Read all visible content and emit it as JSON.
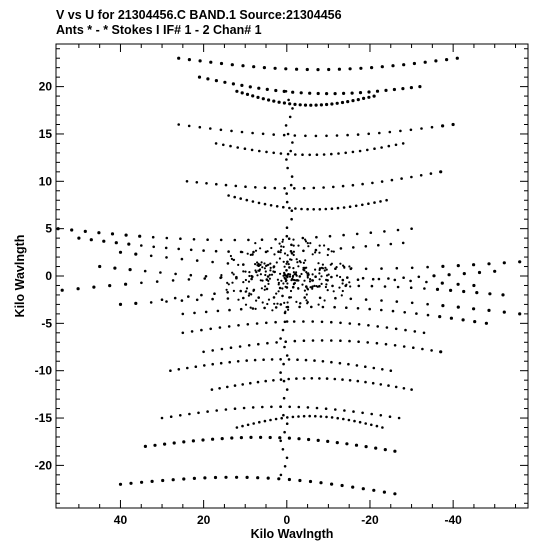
{
  "title_line1": "V vs U for 21304456.C BAND.1   Source:21304456",
  "title_line2": "Ants * - *    Stokes I  IF# 1 - 2  Chan# 1",
  "chart_data": {
    "type": "scatter",
    "title": "V vs U for 21304456.C BAND.1   Source:21304456",
    "subtitle": "Ants * - *    Stokes I  IF# 1 - 2  Chan# 1",
    "xlabel": "Kilo Wavlngth",
    "ylabel": "Kilo Wavlngth",
    "xlim": [
      55.5,
      -58
    ],
    "ylim": [
      -24.5,
      24.5
    ],
    "x_axis_reversed": true,
    "x_ticks": [
      40,
      20,
      0,
      -20,
      -40
    ],
    "x_tick_labels": [
      "40",
      "20",
      "0",
      "-20",
      "-40"
    ],
    "y_ticks": [
      20,
      15,
      10,
      5,
      0,
      -5,
      -10,
      -15,
      -20
    ],
    "y_tick_labels": [
      "20",
      "15",
      "10",
      "5",
      "0",
      "-5",
      "-10",
      "-15",
      "-20"
    ],
    "grid": false,
    "legend": "none",
    "marker_color": "#000000",
    "series": [
      {
        "tracks": [
          {
            "from": [
              26,
              23
            ],
            "to": [
              -41,
              23
            ]
          },
          {
            "from": [
              21,
              21
            ],
            "to": [
              -32,
              20
            ]
          },
          {
            "from": [
              12,
              19.5
            ],
            "to": [
              -21,
              19
            ]
          },
          {
            "from": [
              26,
              16
            ],
            "to": [
              -40,
              16
            ]
          },
          {
            "from": [
              17,
              14
            ],
            "to": [
              -28,
              14
            ]
          },
          {
            "from": [
              24,
              10
            ],
            "to": [
              -37,
              11
            ]
          },
          {
            "from": [
              14,
              8.5
            ],
            "to": [
              -24,
              8
            ]
          },
          {
            "from": [
              55,
              5
            ],
            "to": [
              -30,
              5
            ]
          },
          {
            "from": [
              50,
              4
            ],
            "to": [
              -28,
              3.5
            ]
          },
          {
            "from": [
              40,
              2.5
            ],
            "to": [
              -56,
              1.5
            ]
          },
          {
            "from": [
              45,
              1
            ],
            "to": [
              -50,
              0.5
            ]
          },
          {
            "from": [
              54,
              -1.5
            ],
            "to": [
              -45,
              -1
            ]
          },
          {
            "from": [
              30,
              -2.5
            ],
            "to": [
              -52,
              -2
            ]
          },
          {
            "from": [
              40,
              -3
            ],
            "to": [
              -56,
              -4
            ]
          },
          {
            "from": [
              25,
              -4
            ],
            "to": [
              -48,
              -5
            ]
          },
          {
            "from": [
              25,
              -6
            ],
            "to": [
              -33,
              -6
            ]
          },
          {
            "from": [
              20,
              -8
            ],
            "to": [
              -37,
              -8
            ]
          },
          {
            "from": [
              28,
              -10
            ],
            "to": [
              -25,
              -10
            ]
          },
          {
            "from": [
              18,
              -12
            ],
            "to": [
              -30,
              -12
            ]
          },
          {
            "from": [
              30,
              -15
            ],
            "to": [
              -27,
              -15
            ]
          },
          {
            "from": [
              12,
              -16
            ],
            "to": [
              -23,
              -16
            ]
          },
          {
            "from": [
              34,
              -18
            ],
            "to": [
              -26,
              -18.5
            ]
          },
          {
            "from": [
              40,
              -22
            ],
            "to": [
              -26,
              -23
            ]
          }
        ],
        "dense_core": {
          "center": [
            0,
            0
          ],
          "radius_u": 16,
          "radius_v": 4
        }
      }
    ]
  }
}
